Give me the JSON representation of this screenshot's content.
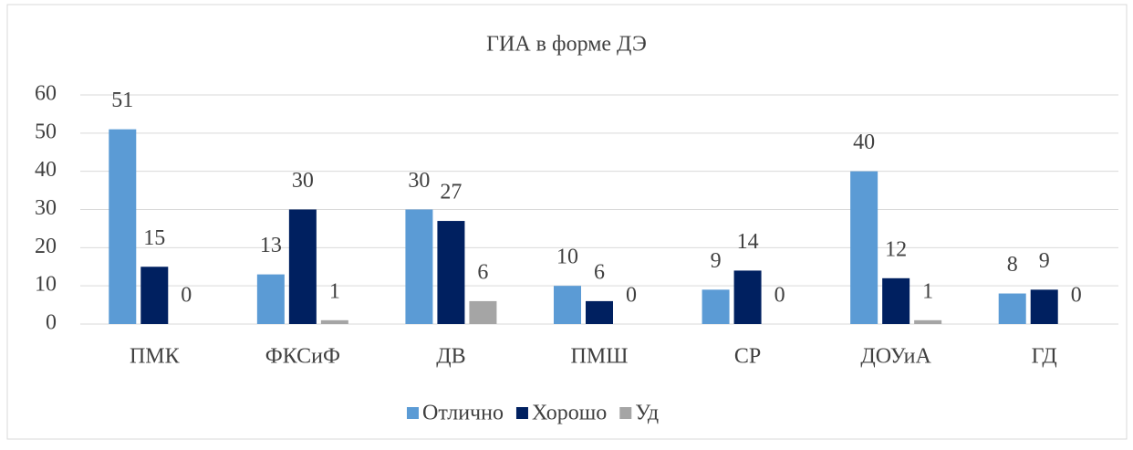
{
  "chart_data": {
    "type": "bar",
    "title": "ГИА в форме ДЭ",
    "categories": [
      "ПМК",
      "ФКСиФ",
      "ДВ",
      "ПМШ",
      "СР",
      "ДОУиА",
      "ГД"
    ],
    "series": [
      {
        "name": "Отлично",
        "color": "#5b9bd5",
        "values": [
          51,
          13,
          30,
          10,
          9,
          40,
          8
        ]
      },
      {
        "name": "Хорошо",
        "color": "#002060",
        "values": [
          15,
          30,
          27,
          6,
          14,
          12,
          9
        ]
      },
      {
        "name": "Уд",
        "color": "#a5a5a5",
        "values": [
          0,
          1,
          6,
          0,
          0,
          1,
          0
        ]
      }
    ],
    "ylim": [
      0,
      60
    ],
    "yticks": [
      0,
      10,
      20,
      30,
      40,
      50,
      60
    ],
    "grid": true,
    "legend": "bottom"
  }
}
